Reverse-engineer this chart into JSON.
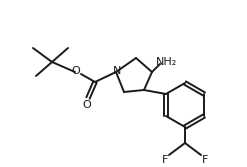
{
  "background_color": "#ffffff",
  "line_color": "#1a1a1a",
  "line_width": 1.4,
  "font_size": 7.5,
  "atoms": {
    "NH2_label": "NH₂",
    "N_label": "N",
    "O1_label": "O",
    "O2_label": "O",
    "F1_label": "F",
    "F2_label": "F"
  }
}
